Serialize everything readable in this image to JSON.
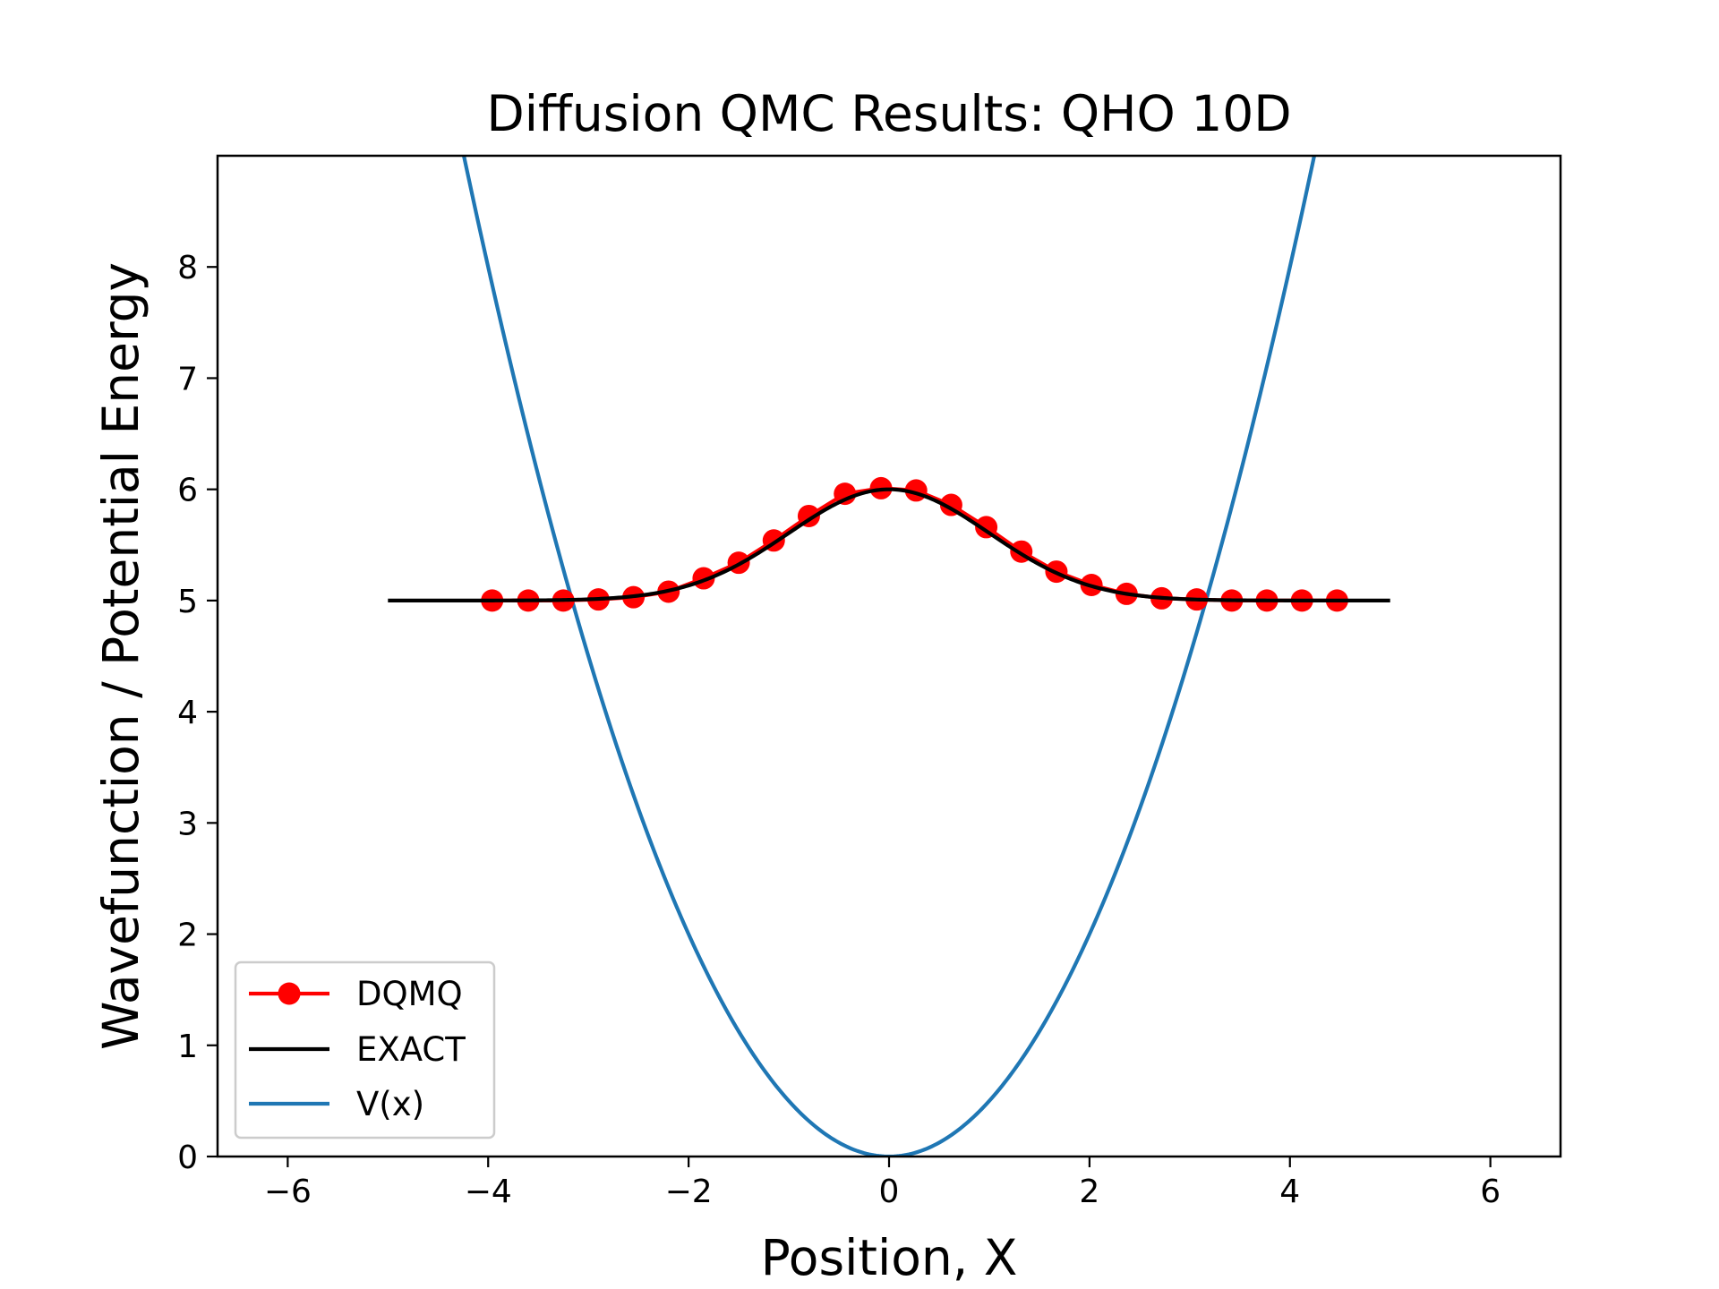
{
  "chart_data": {
    "type": "line",
    "title": "Diffusion QMC Results: QHO 10D",
    "xlabel": "Position, X",
    "ylabel": "Wavefunction / Potential Energy",
    "xlim": [
      -6.7,
      6.7
    ],
    "ylim": [
      0,
      9
    ],
    "xticks": [
      -6,
      -4,
      -2,
      0,
      2,
      4,
      6
    ],
    "xtick_labels": [
      "−6",
      "−4",
      "−2",
      "0",
      "2",
      "4",
      "6"
    ],
    "yticks": [
      0,
      1,
      2,
      3,
      4,
      5,
      6,
      7,
      8
    ],
    "ytick_labels": [
      "0",
      "1",
      "2",
      "3",
      "4",
      "5",
      "6",
      "7",
      "8"
    ],
    "grid": false,
    "legend_position": "lower-left",
    "series": [
      {
        "name": "DQMQ",
        "style": "line-with-markers",
        "color": "#ff0000",
        "x": [
          -3.96,
          -3.6,
          -3.25,
          -2.9,
          -2.55,
          -2.2,
          -1.85,
          -1.5,
          -1.15,
          -0.8,
          -0.44,
          -0.08,
          0.27,
          0.62,
          0.97,
          1.32,
          1.67,
          2.02,
          2.37,
          2.72,
          3.07,
          3.42,
          3.77,
          4.12,
          4.47
        ],
        "y": [
          5.0,
          5.0,
          5.0,
          5.01,
          5.03,
          5.08,
          5.2,
          5.34,
          5.54,
          5.76,
          5.96,
          6.01,
          5.99,
          5.86,
          5.66,
          5.44,
          5.26,
          5.14,
          5.06,
          5.02,
          5.01,
          5.0,
          5.0,
          5.0,
          5.0
        ]
      },
      {
        "name": "EXACT",
        "style": "line",
        "color": "#000000",
        "function": "5 + exp(-x^2 / 2)",
        "xrange": [
          -5,
          5
        ]
      },
      {
        "name": "V(x)",
        "style": "line",
        "color": "#1f77b4",
        "function": "x^2 / 2",
        "xrange": [
          -5,
          5
        ]
      }
    ]
  }
}
